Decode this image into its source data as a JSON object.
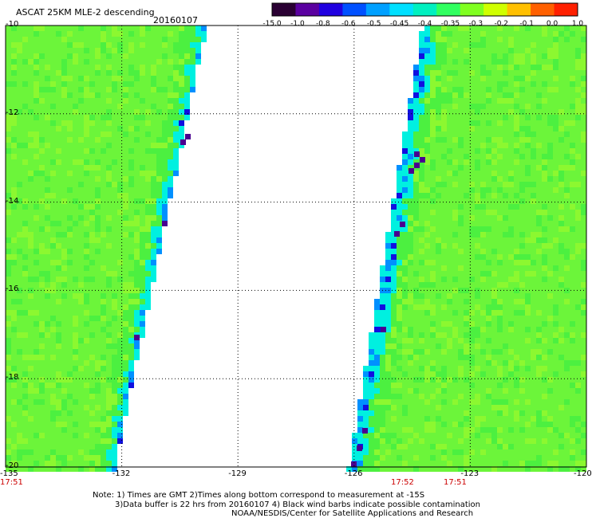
{
  "header": {
    "title": "ASCAT 25KM MLE-2 descending",
    "date": "20160107"
  },
  "colorbar": {
    "tick_labels": [
      "-15.0",
      "-1.0",
      "-0.8",
      "-0.6",
      "-0.5",
      "-0.45",
      "-0.4",
      "-0.35",
      "-0.3",
      "-0.2",
      "-0.1",
      "0.0",
      "1.0"
    ],
    "colors": [
      "#2a0033",
      "#5a00a0",
      "#2000e0",
      "#0050ff",
      "#00a0ff",
      "#00e0ff",
      "#00f0c0",
      "#30ff60",
      "#80ff20",
      "#d0ff00",
      "#ffc000",
      "#ff6000",
      "#ff2000"
    ]
  },
  "map": {
    "lon_range": [
      -135,
      -120
    ],
    "lat_range": [
      -20,
      -10
    ],
    "lon_ticks": [
      "-135",
      "-132",
      "-129",
      "-126",
      "-123",
      "-120"
    ],
    "lat_ticks": [
      "-10",
      "-12",
      "-14",
      "-16",
      "-18",
      "-20"
    ],
    "swath_colors": {
      "dominant": "#6cf53a",
      "green_alt": "#4cf040",
      "light_green": "#8cf830",
      "cyan": "#00f0e0",
      "blue": "#0090ff",
      "dark_blue": "#1010e0",
      "purple": "#4a0090"
    }
  },
  "time_labels": {
    "left": "17:51",
    "mid1": "17:52",
    "mid2": "17:51"
  },
  "notes": {
    "line1": "Note: 1) Times are GMT 2)Times along bottom correspond to measurement at -15S",
    "line2": "3)Data buffer is 22 hrs from 20160107 4) Black wind barbs indicate possible contamination",
    "line3": "NOAA/NESDIS/Center for Satellite Applications and Research"
  }
}
